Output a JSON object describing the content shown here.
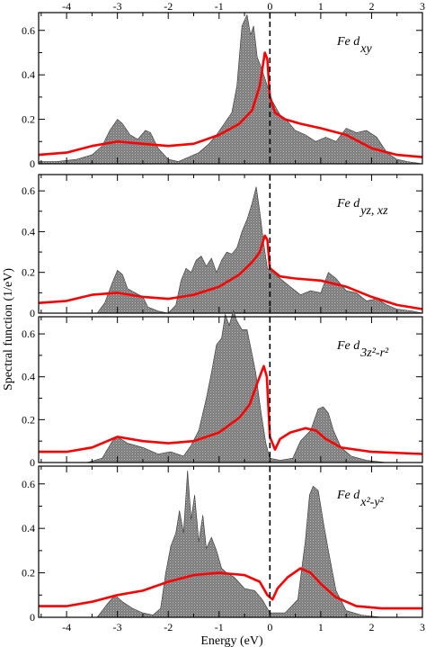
{
  "figure": {
    "xlabel": "Energy (eV)",
    "ylabel": "Spectral function (1/eV)"
  },
  "chart_data": {
    "type": "area",
    "x_ticks": [
      -4,
      -3,
      -2,
      -1,
      0,
      1,
      2,
      3
    ],
    "x_tick_labels": [
      "-4",
      "-3",
      "-2",
      "-1",
      "0",
      "1",
      "2",
      "3"
    ],
    "y_ticks": [
      0,
      0.2,
      0.4,
      0.6
    ],
    "y_tick_labels": [
      "0",
      "0.2",
      "0.4",
      "0.6"
    ],
    "xlim": [
      -4.55,
      3.0
    ],
    "ylim": [
      0,
      0.68
    ],
    "fermi_level": 0,
    "colors": {
      "shaded": "#808080",
      "line": "#ff0000",
      "axis": "#000000"
    },
    "panels": [
      {
        "label_main": "Fe d",
        "label_sub": "xy",
        "shaded": [
          [
            -4.55,
            0.01
          ],
          [
            -4.2,
            0.01
          ],
          [
            -3.8,
            0.02
          ],
          [
            -3.5,
            0.04
          ],
          [
            -3.3,
            0.08
          ],
          [
            -3.15,
            0.15
          ],
          [
            -3.0,
            0.2
          ],
          [
            -2.9,
            0.18
          ],
          [
            -2.75,
            0.13
          ],
          [
            -2.6,
            0.11
          ],
          [
            -2.45,
            0.15
          ],
          [
            -2.35,
            0.14
          ],
          [
            -2.2,
            0.07
          ],
          [
            -2.0,
            0.02
          ],
          [
            -1.8,
            0.01
          ],
          [
            -1.6,
            0.03
          ],
          [
            -1.4,
            0.05
          ],
          [
            -1.2,
            0.09
          ],
          [
            -1.05,
            0.13
          ],
          [
            -0.9,
            0.18
          ],
          [
            -0.75,
            0.23
          ],
          [
            -0.65,
            0.35
          ],
          [
            -0.55,
            0.62
          ],
          [
            -0.45,
            0.67
          ],
          [
            -0.38,
            0.58
          ],
          [
            -0.32,
            0.62
          ],
          [
            -0.25,
            0.48
          ],
          [
            -0.15,
            0.42
          ],
          [
            -0.05,
            0.35
          ],
          [
            0.05,
            0.28
          ],
          [
            0.2,
            0.22
          ],
          [
            0.35,
            0.19
          ],
          [
            0.5,
            0.15
          ],
          [
            0.7,
            0.13
          ],
          [
            0.9,
            0.1
          ],
          [
            1.1,
            0.12
          ],
          [
            1.3,
            0.1
          ],
          [
            1.5,
            0.16
          ],
          [
            1.7,
            0.14
          ],
          [
            1.9,
            0.15
          ],
          [
            2.1,
            0.12
          ],
          [
            2.3,
            0.05
          ],
          [
            2.5,
            0.02
          ],
          [
            2.7,
            0.01
          ],
          [
            3.0,
            0.0
          ]
        ],
        "line": [
          [
            -4.55,
            0.04
          ],
          [
            -4.0,
            0.05
          ],
          [
            -3.5,
            0.08
          ],
          [
            -3.0,
            0.1
          ],
          [
            -2.5,
            0.09
          ],
          [
            -2.0,
            0.08
          ],
          [
            -1.5,
            0.09
          ],
          [
            -1.0,
            0.13
          ],
          [
            -0.6,
            0.18
          ],
          [
            -0.35,
            0.24
          ],
          [
            -0.2,
            0.35
          ],
          [
            -0.1,
            0.5
          ],
          [
            -0.05,
            0.47
          ],
          [
            0.0,
            0.3
          ],
          [
            0.1,
            0.23
          ],
          [
            0.3,
            0.2
          ],
          [
            0.6,
            0.18
          ],
          [
            1.0,
            0.16
          ],
          [
            1.5,
            0.13
          ],
          [
            2.0,
            0.07
          ],
          [
            2.5,
            0.04
          ],
          [
            3.0,
            0.03
          ]
        ]
      },
      {
        "label_main": "Fe d",
        "label_sub": "yz, xz",
        "shaded": [
          [
            -4.55,
            0.0
          ],
          [
            -3.4,
            0.0
          ],
          [
            -3.25,
            0.05
          ],
          [
            -3.1,
            0.15
          ],
          [
            -3.0,
            0.21
          ],
          [
            -2.9,
            0.19
          ],
          [
            -2.8,
            0.12
          ],
          [
            -2.65,
            0.1
          ],
          [
            -2.5,
            0.08
          ],
          [
            -2.4,
            0.03
          ],
          [
            -2.2,
            0.01
          ],
          [
            -2.0,
            0.0
          ],
          [
            -1.85,
            0.04
          ],
          [
            -1.75,
            0.16
          ],
          [
            -1.65,
            0.22
          ],
          [
            -1.55,
            0.2
          ],
          [
            -1.45,
            0.26
          ],
          [
            -1.35,
            0.28
          ],
          [
            -1.25,
            0.23
          ],
          [
            -1.15,
            0.27
          ],
          [
            -1.05,
            0.2
          ],
          [
            -0.95,
            0.26
          ],
          [
            -0.85,
            0.3
          ],
          [
            -0.75,
            0.29
          ],
          [
            -0.65,
            0.32
          ],
          [
            -0.55,
            0.4
          ],
          [
            -0.45,
            0.46
          ],
          [
            -0.35,
            0.54
          ],
          [
            -0.27,
            0.62
          ],
          [
            -0.2,
            0.5
          ],
          [
            -0.12,
            0.34
          ],
          [
            -0.05,
            0.22
          ],
          [
            0.05,
            0.2
          ],
          [
            0.2,
            0.17
          ],
          [
            0.4,
            0.13
          ],
          [
            0.6,
            0.09
          ],
          [
            0.8,
            0.11
          ],
          [
            1.0,
            0.1
          ],
          [
            1.15,
            0.2
          ],
          [
            1.3,
            0.17
          ],
          [
            1.5,
            0.11
          ],
          [
            1.7,
            0.1
          ],
          [
            1.9,
            0.06
          ],
          [
            2.1,
            0.07
          ],
          [
            2.3,
            0.04
          ],
          [
            2.5,
            0.02
          ],
          [
            2.8,
            0.01
          ],
          [
            3.0,
            0.0
          ]
        ],
        "line": [
          [
            -4.55,
            0.05
          ],
          [
            -4.0,
            0.06
          ],
          [
            -3.5,
            0.09
          ],
          [
            -3.0,
            0.1
          ],
          [
            -2.5,
            0.08
          ],
          [
            -2.0,
            0.07
          ],
          [
            -1.5,
            0.09
          ],
          [
            -1.0,
            0.13
          ],
          [
            -0.6,
            0.19
          ],
          [
            -0.35,
            0.25
          ],
          [
            -0.2,
            0.3
          ],
          [
            -0.1,
            0.38
          ],
          [
            -0.05,
            0.36
          ],
          [
            0.0,
            0.22
          ],
          [
            0.2,
            0.18
          ],
          [
            0.5,
            0.17
          ],
          [
            1.0,
            0.16
          ],
          [
            1.5,
            0.13
          ],
          [
            2.0,
            0.08
          ],
          [
            2.5,
            0.04
          ],
          [
            3.0,
            0.02
          ]
        ]
      },
      {
        "label_main": "Fe d",
        "label_sub": "3z²-r²",
        "shaded": [
          [
            -4.55,
            0.0
          ],
          [
            -3.6,
            0.0
          ],
          [
            -3.3,
            0.02
          ],
          [
            -3.1,
            0.1
          ],
          [
            -3.0,
            0.12
          ],
          [
            -2.8,
            0.09
          ],
          [
            -2.5,
            0.07
          ],
          [
            -2.2,
            0.04
          ],
          [
            -1.95,
            0.05
          ],
          [
            -1.7,
            0.03
          ],
          [
            -1.55,
            0.08
          ],
          [
            -1.4,
            0.15
          ],
          [
            -1.25,
            0.3
          ],
          [
            -1.15,
            0.42
          ],
          [
            -1.05,
            0.55
          ],
          [
            -0.95,
            0.58
          ],
          [
            -0.88,
            0.69
          ],
          [
            -0.8,
            0.64
          ],
          [
            -0.72,
            0.71
          ],
          [
            -0.65,
            0.66
          ],
          [
            -0.55,
            0.62
          ],
          [
            -0.45,
            0.62
          ],
          [
            -0.38,
            0.54
          ],
          [
            -0.28,
            0.42
          ],
          [
            -0.18,
            0.24
          ],
          [
            -0.08,
            0.09
          ],
          [
            0.0,
            0.02
          ],
          [
            0.2,
            0.01
          ],
          [
            0.45,
            0.02
          ],
          [
            0.6,
            0.1
          ],
          [
            0.8,
            0.15
          ],
          [
            0.95,
            0.25
          ],
          [
            1.05,
            0.26
          ],
          [
            1.15,
            0.23
          ],
          [
            1.25,
            0.15
          ],
          [
            1.4,
            0.07
          ],
          [
            1.6,
            0.03
          ],
          [
            1.9,
            0.01
          ],
          [
            2.3,
            0.0
          ],
          [
            3.0,
            0.0
          ]
        ],
        "line": [
          [
            -4.55,
            0.05
          ],
          [
            -4.0,
            0.05
          ],
          [
            -3.5,
            0.07
          ],
          [
            -3.0,
            0.12
          ],
          [
            -2.5,
            0.1
          ],
          [
            -2.0,
            0.09
          ],
          [
            -1.5,
            0.1
          ],
          [
            -1.0,
            0.14
          ],
          [
            -0.6,
            0.21
          ],
          [
            -0.4,
            0.27
          ],
          [
            -0.25,
            0.37
          ],
          [
            -0.12,
            0.45
          ],
          [
            -0.06,
            0.4
          ],
          [
            0.0,
            0.12
          ],
          [
            0.1,
            0.06
          ],
          [
            0.2,
            0.11
          ],
          [
            0.4,
            0.14
          ],
          [
            0.7,
            0.16
          ],
          [
            0.9,
            0.15
          ],
          [
            1.1,
            0.11
          ],
          [
            1.4,
            0.07
          ],
          [
            2.0,
            0.05
          ],
          [
            3.0,
            0.04
          ]
        ]
      },
      {
        "label_main": "Fe d",
        "label_sub": "x²-y²",
        "shaded": [
          [
            -4.55,
            0.0
          ],
          [
            -3.4,
            0.0
          ],
          [
            -3.2,
            0.06
          ],
          [
            -3.05,
            0.1
          ],
          [
            -2.9,
            0.07
          ],
          [
            -2.7,
            0.04
          ],
          [
            -2.5,
            0.02
          ],
          [
            -2.3,
            0.01
          ],
          [
            -2.15,
            0.04
          ],
          [
            -2.05,
            0.2
          ],
          [
            -1.95,
            0.32
          ],
          [
            -1.85,
            0.38
          ],
          [
            -1.78,
            0.48
          ],
          [
            -1.7,
            0.38
          ],
          [
            -1.62,
            0.66
          ],
          [
            -1.55,
            0.44
          ],
          [
            -1.48,
            0.55
          ],
          [
            -1.4,
            0.34
          ],
          [
            -1.32,
            0.46
          ],
          [
            -1.25,
            0.31
          ],
          [
            -1.15,
            0.36
          ],
          [
            -1.05,
            0.3
          ],
          [
            -0.95,
            0.22
          ],
          [
            -0.85,
            0.2
          ],
          [
            -0.7,
            0.18
          ],
          [
            -0.5,
            0.13
          ],
          [
            -0.3,
            0.12
          ],
          [
            -0.15,
            0.08
          ],
          [
            0.0,
            0.02
          ],
          [
            0.3,
            0.02
          ],
          [
            0.55,
            0.08
          ],
          [
            0.7,
            0.35
          ],
          [
            0.78,
            0.55
          ],
          [
            0.85,
            0.59
          ],
          [
            0.95,
            0.57
          ],
          [
            1.05,
            0.43
          ],
          [
            1.15,
            0.3
          ],
          [
            1.3,
            0.12
          ],
          [
            1.5,
            0.03
          ],
          [
            1.8,
            0.01
          ],
          [
            2.2,
            0.0
          ],
          [
            3.0,
            0.0
          ]
        ],
        "line": [
          [
            -4.55,
            0.05
          ],
          [
            -4.0,
            0.05
          ],
          [
            -3.5,
            0.07
          ],
          [
            -3.0,
            0.1
          ],
          [
            -2.5,
            0.12
          ],
          [
            -2.0,
            0.16
          ],
          [
            -1.5,
            0.19
          ],
          [
            -1.0,
            0.2
          ],
          [
            -0.5,
            0.19
          ],
          [
            -0.2,
            0.16
          ],
          [
            -0.05,
            0.1
          ],
          [
            0.05,
            0.08
          ],
          [
            0.15,
            0.13
          ],
          [
            0.35,
            0.18
          ],
          [
            0.6,
            0.22
          ],
          [
            0.8,
            0.2
          ],
          [
            1.0,
            0.15
          ],
          [
            1.3,
            0.09
          ],
          [
            1.7,
            0.05
          ],
          [
            2.2,
            0.04
          ],
          [
            3.0,
            0.04
          ]
        ]
      }
    ]
  }
}
